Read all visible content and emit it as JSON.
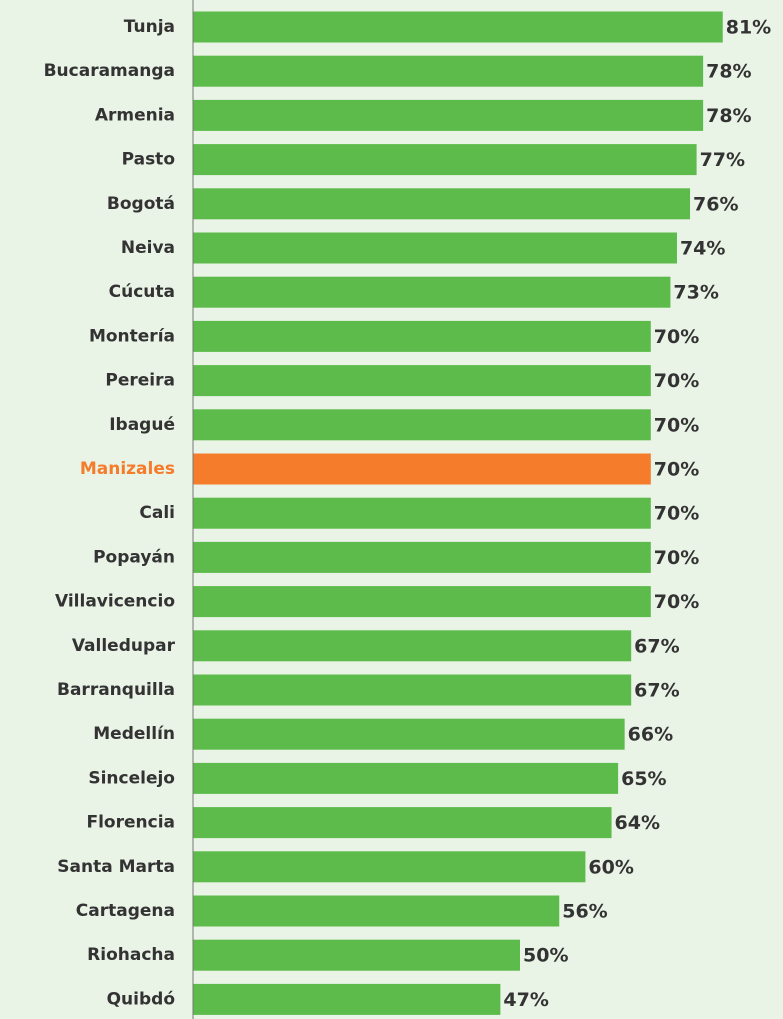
{
  "chart_data": {
    "type": "bar",
    "orientation": "horizontal",
    "categories": [
      "Tunja",
      "Bucaramanga",
      "Armenia",
      "Pasto",
      "Bogotá",
      "Neiva",
      "Cúcuta",
      "Montería",
      "Pereira",
      "Ibagué",
      "Manizales",
      "Cali",
      "Popayán",
      "Villavicencio",
      "Valledupar",
      "Barranquilla",
      "Medellín",
      "Sincelejo",
      "Florencia",
      "Santa Marta",
      "Cartagena",
      "Riohacha",
      "Quibdó"
    ],
    "values": [
      81,
      78,
      78,
      77,
      76,
      74,
      73,
      70,
      70,
      70,
      70,
      70,
      70,
      70,
      67,
      67,
      66,
      65,
      64,
      60,
      56,
      50,
      47
    ],
    "value_labels": [
      "81%",
      "78%",
      "78%",
      "77%",
      "76%",
      "74%",
      "73%",
      "70%",
      "70%",
      "70%",
      "70%",
      "70%",
      "70%",
      "70%",
      "67%",
      "67%",
      "66%",
      "65%",
      "64%",
      "60%",
      "56%",
      "50%",
      "47%"
    ],
    "color": "#5cbb4a",
    "colors": [
      "#5cbb4a",
      "#5cbb4a",
      "#5cbb4a",
      "#5cbb4a",
      "#5cbb4a",
      "#5cbb4a",
      "#5cbb4a",
      "#5cbb4a",
      "#5cbb4a",
      "#5cbb4a",
      "#f47c2a",
      "#5cbb4a",
      "#5cbb4a",
      "#5cbb4a",
      "#5cbb4a",
      "#5cbb4a",
      "#5cbb4a",
      "#5cbb4a",
      "#5cbb4a",
      "#5cbb4a",
      "#5cbb4a",
      "#5cbb4a",
      "#5cbb4a"
    ]
  }
}
